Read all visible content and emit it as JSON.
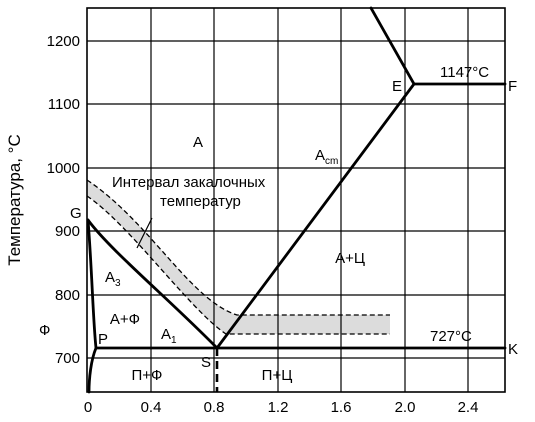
{
  "diagram": {
    "y_axis_label": "Температура, °C",
    "y_ticks": [
      "1200",
      "1100",
      "1000",
      "900",
      "800",
      "700"
    ],
    "x_ticks": [
      "0",
      "0.4",
      "0.8",
      "1.2",
      "1.6",
      "2.0",
      "2.4"
    ],
    "points": {
      "G": "G",
      "P": "P",
      "S": "S",
      "E": "E",
      "F": "F",
      "K": "K"
    },
    "regions": {
      "austenite": "А",
      "austenite_ferrite": "А+Ф",
      "austenite_cementite": "А+Ц",
      "ferrite": "Ф",
      "pearlite_ferrite": "П+Ф",
      "pearlite_cementite": "П+Ц"
    },
    "lines": {
      "a3_main": "A",
      "a3_sub": "3",
      "a1_main": "A",
      "a1_sub": "1",
      "acm_main": "A",
      "acm_sub": "cm"
    },
    "temperatures": {
      "eutectic": "1147°С",
      "eutectoid": "727°С"
    },
    "annotation": {
      "line1": "Интервал закалочных",
      "line2": "температур"
    }
  }
}
